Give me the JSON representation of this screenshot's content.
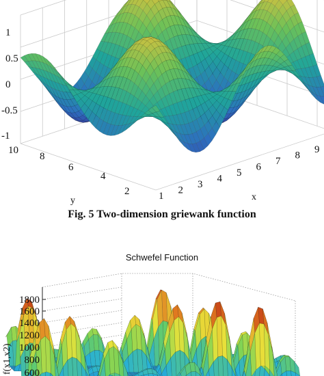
{
  "chart_data": [
    {
      "type": "surface",
      "caption": "Fig. 5 Two-dimension griewank function",
      "xlabel": "x",
      "ylabel": "y",
      "zlabel": "",
      "x_ticks": [
        "1",
        "2",
        "3",
        "4",
        "5",
        "6",
        "7",
        "8",
        "9"
      ],
      "y_ticks": [
        "2",
        "4",
        "6",
        "8",
        "10"
      ],
      "z_ticks": [
        "1",
        "0.5",
        "0",
        "-0.5",
        "-1"
      ],
      "xlim": [
        1,
        9
      ],
      "ylim": [
        1,
        10
      ],
      "zlim": [
        -1,
        1
      ],
      "colormap": [
        "#3b1f8a",
        "#2d6fbf",
        "#1fa59a",
        "#6cc158",
        "#e6c13a"
      ],
      "grid": true
    },
    {
      "type": "surface",
      "title": "Schwefel Function",
      "zlabel": "f(x1,x2)",
      "z_ticks": [
        "1800",
        "1600",
        "1400",
        "1200",
        "1000",
        "800",
        "600"
      ],
      "colormap": [
        "#1f3aa8",
        "#26b0d8",
        "#6ed05a",
        "#e8e23a",
        "#e07a20",
        "#b51a12"
      ],
      "grid": true
    }
  ]
}
